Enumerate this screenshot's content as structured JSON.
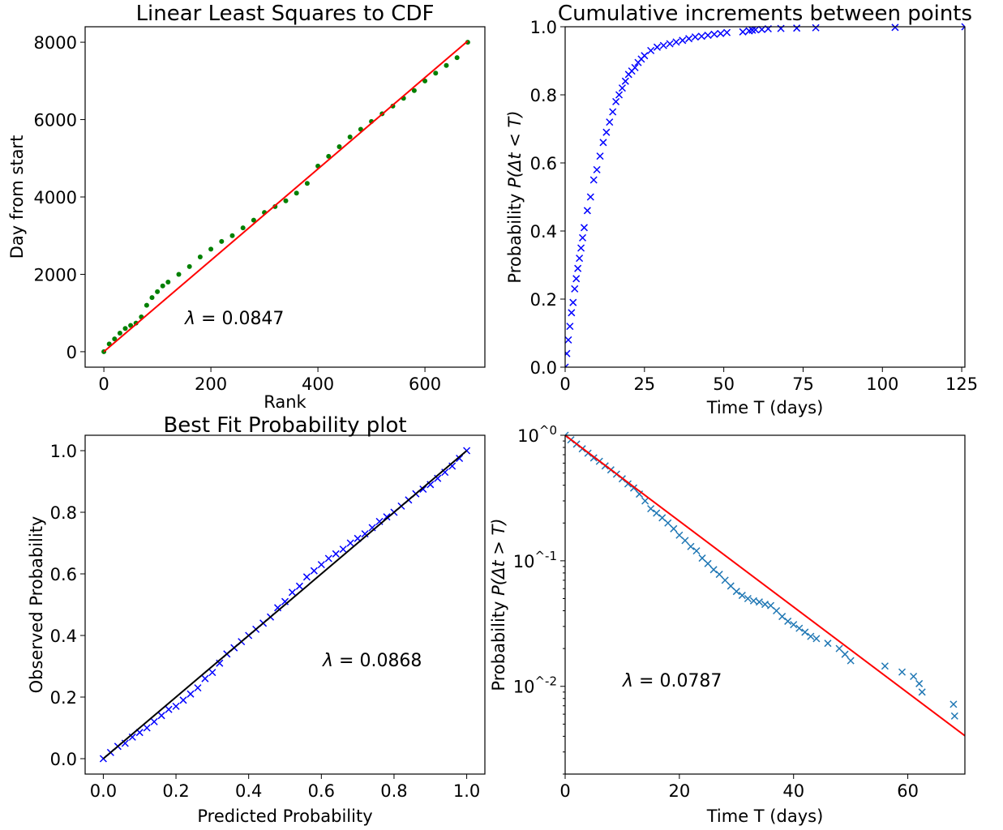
{
  "chart_data": [
    {
      "type": "scatter",
      "title": "Linear Least Squares to CDF",
      "xlabel": "Rank",
      "ylabel": "Day from start",
      "xlim": [
        -35,
        712
      ],
      "ylim": [
        -400,
        8400
      ],
      "xticks": [
        0,
        200,
        400,
        600
      ],
      "xtick_labels": [
        "0",
        "200",
        "400",
        "600"
      ],
      "yticks": [
        0,
        2000,
        4000,
        6000,
        8000
      ],
      "ytick_labels": [
        "0",
        "2000",
        "4000",
        "6000",
        "8000"
      ],
      "annotation": "λ = 0.0847",
      "series": [
        {
          "marker": "dot",
          "color": "#008000",
          "x": [
            0,
            10,
            20,
            30,
            40,
            50,
            60,
            70,
            80,
            90,
            100,
            110,
            120,
            140,
            160,
            180,
            200,
            220,
            240,
            260,
            280,
            300,
            320,
            340,
            360,
            380,
            400,
            420,
            440,
            460,
            480,
            500,
            520,
            540,
            560,
            580,
            600,
            620,
            640,
            660,
            680
          ],
          "y": [
            0,
            200,
            330,
            480,
            600,
            680,
            740,
            900,
            1200,
            1400,
            1550,
            1700,
            1800,
            2000,
            2200,
            2450,
            2650,
            2850,
            3000,
            3200,
            3400,
            3600,
            3750,
            3900,
            4100,
            4350,
            4800,
            5050,
            5300,
            5550,
            5750,
            5950,
            6150,
            6350,
            6550,
            6750,
            7000,
            7200,
            7400,
            7600,
            8000
          ]
        },
        {
          "marker": "line",
          "color": "#ff0000",
          "x": [
            0,
            680
          ],
          "y": [
            0,
            8030
          ]
        }
      ]
    },
    {
      "type": "scatter",
      "title": "Cumulative increments between points",
      "xlabel": "Time T (days)",
      "ylabel": "Probability P(Δt < T)",
      "xlim": [
        0,
        126
      ],
      "ylim": [
        0,
        1
      ],
      "xticks": [
        0,
        25,
        50,
        75,
        100,
        125
      ],
      "xtick_labels": [
        "0",
        "25",
        "50",
        "75",
        "100",
        "125"
      ],
      "yticks": [
        0,
        0.2,
        0.4,
        0.6,
        0.8,
        1.0
      ],
      "ytick_labels": [
        "0.0",
        "0.2",
        "0.4",
        "0.6",
        "0.8",
        "1.0"
      ],
      "series": [
        {
          "marker": "x",
          "color": "#0000ff",
          "x": [
            0,
            0.5,
            1,
            1.5,
            2,
            2.5,
            3,
            3.5,
            4,
            4.5,
            5,
            5.5,
            6,
            7,
            8,
            9,
            10,
            11,
            12,
            13,
            14,
            15,
            16,
            17,
            18,
            19,
            20,
            21,
            22,
            23,
            24,
            25,
            27,
            29,
            31,
            33,
            35,
            37,
            39,
            41,
            43,
            45,
            47,
            49,
            51,
            56,
            58,
            59,
            60,
            62,
            64,
            68,
            73,
            79,
            104,
            126
          ],
          "y": [
            0,
            0.04,
            0.08,
            0.12,
            0.16,
            0.19,
            0.23,
            0.26,
            0.29,
            0.32,
            0.35,
            0.38,
            0.41,
            0.46,
            0.5,
            0.55,
            0.58,
            0.62,
            0.66,
            0.69,
            0.72,
            0.75,
            0.78,
            0.8,
            0.82,
            0.84,
            0.86,
            0.87,
            0.88,
            0.895,
            0.905,
            0.915,
            0.93,
            0.94,
            0.945,
            0.95,
            0.955,
            0.96,
            0.965,
            0.97,
            0.972,
            0.975,
            0.978,
            0.98,
            0.983,
            0.985,
            0.988,
            0.99,
            0.991,
            0.992,
            0.994,
            0.995,
            0.996,
            0.997,
            0.998,
            1.0
          ]
        }
      ]
    },
    {
      "type": "scatter",
      "title": "Best Fit Probability plot",
      "xlabel": "Predicted Probability",
      "ylabel": "Observed Probability",
      "xlim": [
        -0.05,
        1.05
      ],
      "ylim": [
        -0.05,
        1.05
      ],
      "xticks": [
        0,
        0.2,
        0.4,
        0.6,
        0.8,
        1.0
      ],
      "xtick_labels": [
        "0.0",
        "0.2",
        "0.4",
        "0.6",
        "0.8",
        "1.0"
      ],
      "yticks": [
        0,
        0.2,
        0.4,
        0.6,
        0.8,
        1.0
      ],
      "ytick_labels": [
        "0.0",
        "0.2",
        "0.4",
        "0.6",
        "0.8",
        "1.0"
      ],
      "annotation": "λ = 0.0868",
      "series": [
        {
          "marker": "x",
          "color": "#0000ff",
          "x": [
            0,
            0.02,
            0.04,
            0.06,
            0.08,
            0.1,
            0.12,
            0.14,
            0.16,
            0.18,
            0.2,
            0.22,
            0.24,
            0.26,
            0.28,
            0.3,
            0.32,
            0.34,
            0.36,
            0.38,
            0.4,
            0.42,
            0.44,
            0.46,
            0.48,
            0.5,
            0.52,
            0.54,
            0.56,
            0.58,
            0.6,
            0.62,
            0.64,
            0.66,
            0.68,
            0.7,
            0.72,
            0.74,
            0.76,
            0.78,
            0.8,
            0.82,
            0.84,
            0.86,
            0.88,
            0.9,
            0.92,
            0.94,
            0.96,
            0.98,
            1.0
          ],
          "y": [
            0,
            0.02,
            0.04,
            0.05,
            0.07,
            0.085,
            0.1,
            0.12,
            0.14,
            0.16,
            0.17,
            0.19,
            0.21,
            0.23,
            0.26,
            0.28,
            0.31,
            0.34,
            0.36,
            0.38,
            0.4,
            0.42,
            0.44,
            0.46,
            0.49,
            0.51,
            0.54,
            0.56,
            0.59,
            0.61,
            0.63,
            0.65,
            0.665,
            0.68,
            0.7,
            0.715,
            0.73,
            0.75,
            0.77,
            0.785,
            0.8,
            0.82,
            0.84,
            0.86,
            0.875,
            0.89,
            0.91,
            0.93,
            0.95,
            0.975,
            1.0
          ]
        },
        {
          "marker": "line",
          "color": "#000000",
          "x": [
            0,
            1
          ],
          "y": [
            0,
            1
          ]
        }
      ]
    },
    {
      "type": "scatter",
      "title": "",
      "xlabel": "Time T (days)",
      "ylabel": "Probability P(Δt > T)",
      "xlim": [
        0,
        70
      ],
      "ylim": [
        0.002,
        1
      ],
      "yscale": "log",
      "xticks": [
        0,
        20,
        40,
        60
      ],
      "xtick_labels": [
        "0",
        "20",
        "40",
        "60"
      ],
      "yticks": [
        1,
        0.1,
        0.01
      ],
      "ytick_labels": [
        "10^0",
        "10^-1",
        "10^-2"
      ],
      "annotation": "λ = 0.0787",
      "series": [
        {
          "marker": "x",
          "color": "#1f77b4",
          "x": [
            0,
            1,
            2,
            3,
            4,
            5,
            6,
            7,
            8,
            9,
            10,
            11,
            12,
            13,
            14,
            15,
            16,
            17,
            18,
            19,
            20,
            21,
            22,
            23,
            24,
            25,
            26,
            27,
            28,
            29,
            30,
            31,
            32,
            33,
            34,
            35,
            36,
            37,
            38,
            39,
            40,
            41,
            42,
            43,
            44,
            46,
            48,
            49,
            50,
            56,
            59,
            61,
            62,
            62.5,
            68,
            68.2
          ],
          "y": [
            1,
            0.92,
            0.85,
            0.78,
            0.72,
            0.66,
            0.62,
            0.57,
            0.53,
            0.49,
            0.45,
            0.41,
            0.38,
            0.34,
            0.3,
            0.26,
            0.24,
            0.22,
            0.2,
            0.18,
            0.16,
            0.145,
            0.13,
            0.12,
            0.105,
            0.095,
            0.085,
            0.078,
            0.07,
            0.063,
            0.057,
            0.053,
            0.05,
            0.048,
            0.047,
            0.045,
            0.044,
            0.04,
            0.036,
            0.033,
            0.031,
            0.029,
            0.027,
            0.025,
            0.024,
            0.022,
            0.02,
            0.018,
            0.016,
            0.0145,
            0.013,
            0.012,
            0.0105,
            0.009,
            0.0072,
            0.0058
          ]
        },
        {
          "marker": "line",
          "color": "#ff0000",
          "x": [
            0,
            70
          ],
          "y": [
            1,
            0.00404
          ]
        }
      ]
    }
  ]
}
